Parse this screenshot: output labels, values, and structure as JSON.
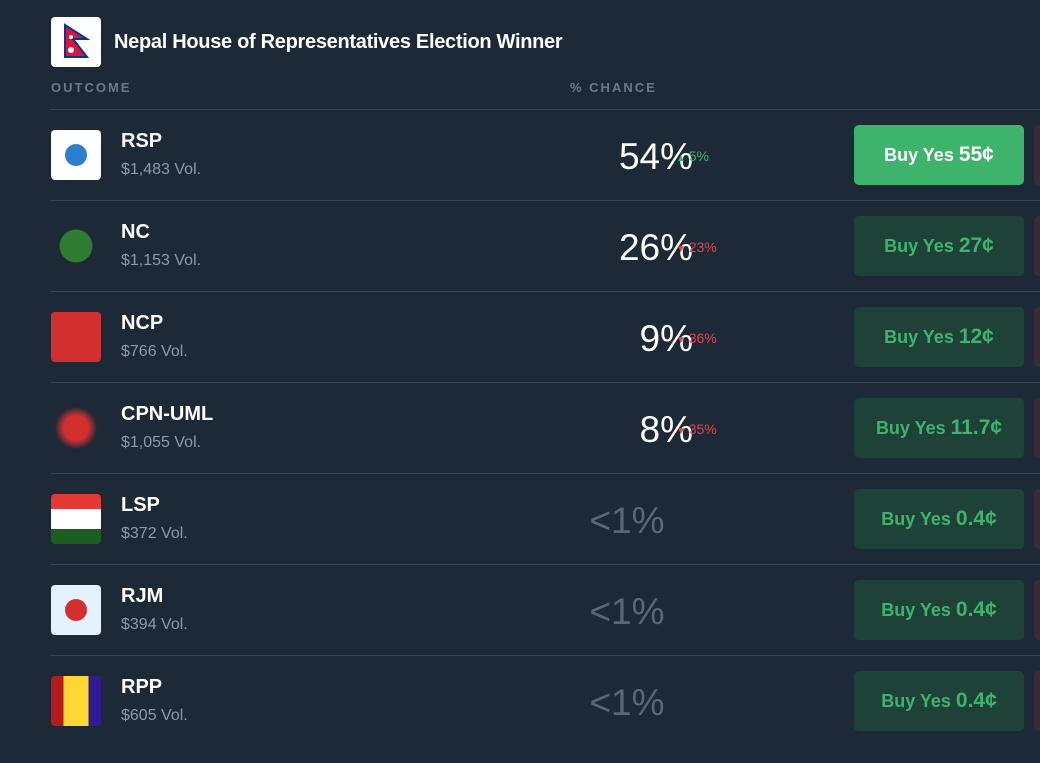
{
  "header": {
    "title": "Nepal House of Representatives Election Winner"
  },
  "columns": {
    "outcome": "OUTCOME",
    "chance": "% CHANCE"
  },
  "rows": [
    {
      "name": "RSP",
      "volume": "$1,483 Vol.",
      "chance": "54%",
      "change": "5%",
      "direction": "up",
      "buy": "Buy Yes",
      "price": "55¢",
      "highlight": true
    },
    {
      "name": "NC",
      "volume": "$1,153 Vol.",
      "chance": "26%",
      "change": "23%",
      "direction": "down",
      "buy": "Buy Yes",
      "price": "27¢"
    },
    {
      "name": "NCP",
      "volume": "$766 Vol.",
      "chance": "9%",
      "change": "36%",
      "direction": "down",
      "buy": "Buy Yes",
      "price": "12¢"
    },
    {
      "name": "CPN-UML",
      "volume": "$1,055 Vol.",
      "chance": "8%",
      "change": "35%",
      "direction": "down",
      "buy": "Buy Yes",
      "price": "11.7¢"
    },
    {
      "name": "LSP",
      "volume": "$372 Vol.",
      "chance": "<1%",
      "buy": "Buy Yes",
      "price": "0.4¢"
    },
    {
      "name": "RJM",
      "volume": "$394 Vol.",
      "chance": "<1%",
      "buy": "Buy Yes",
      "price": "0.4¢"
    },
    {
      "name": "RPP",
      "volume": "$605 Vol.",
      "chance": "<1%",
      "buy": "Buy Yes",
      "price": "0.4¢"
    }
  ]
}
